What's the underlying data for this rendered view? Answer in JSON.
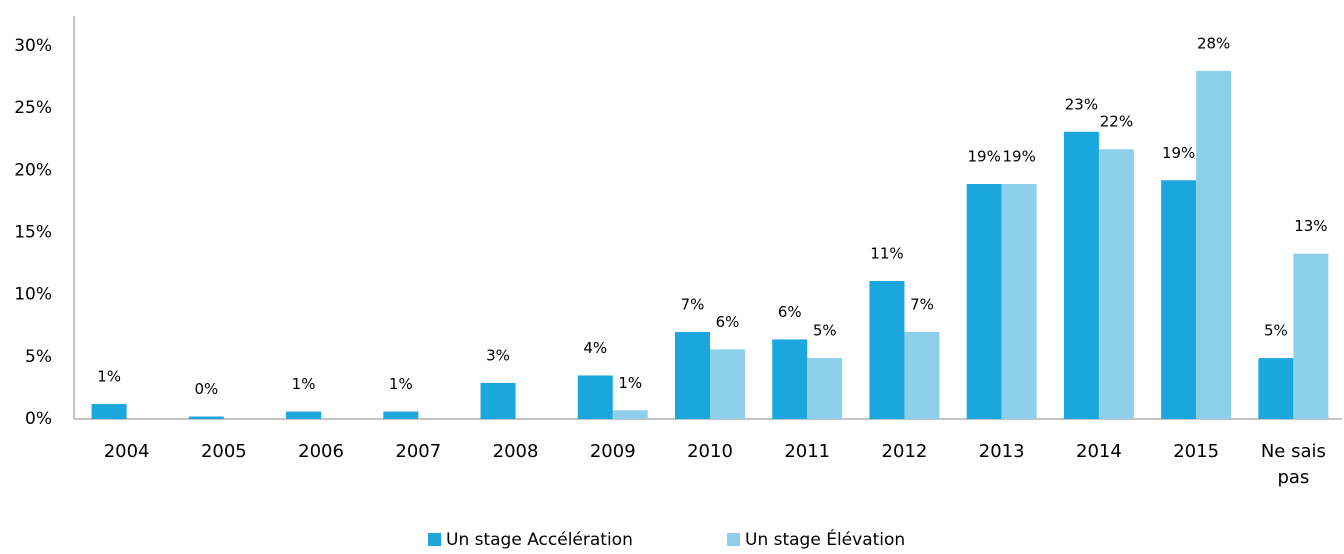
{
  "chart_data": {
    "type": "bar",
    "categories": [
      "2004",
      "2005",
      "2006",
      "2007",
      "2008",
      "2009",
      "2010",
      "2011",
      "2012",
      "2013",
      "2014",
      "2015",
      "Ne sais pas"
    ],
    "series": [
      {
        "name": "Un stage Accélération",
        "color": "#1ba6dd",
        "values": [
          1.2,
          0.2,
          0.6,
          0.6,
          2.9,
          3.5,
          7.0,
          6.4,
          11.1,
          18.9,
          23.1,
          19.2,
          4.9
        ],
        "value_labels": [
          "1%",
          "0%",
          "1%",
          "1%",
          "3%",
          "4%",
          "7%",
          "6%",
          "11%",
          "19%",
          "23%",
          "19%",
          "5%"
        ]
      },
      {
        "name": "Un stage Élévation",
        "color": "#8ed0ec",
        "values": [
          null,
          null,
          null,
          null,
          null,
          0.7,
          5.6,
          4.9,
          7.0,
          18.9,
          21.7,
          28.0,
          13.3
        ],
        "value_labels": [
          null,
          null,
          null,
          null,
          null,
          "1%",
          "6%",
          "5%",
          "7%",
          "19%",
          "22%",
          "28%",
          "13%"
        ]
      }
    ],
    "ylim": [
      0,
      30
    ],
    "yticks": [
      {
        "value": 0,
        "label": "0%"
      },
      {
        "value": 5,
        "label": "5%"
      },
      {
        "value": 10,
        "label": "10%"
      },
      {
        "value": 15,
        "label": "15%"
      },
      {
        "value": 20,
        "label": "20%"
      },
      {
        "value": 25,
        "label": "25%"
      },
      {
        "value": 30,
        "label": "30%"
      }
    ],
    "grid": false,
    "legend": "bottom"
  }
}
